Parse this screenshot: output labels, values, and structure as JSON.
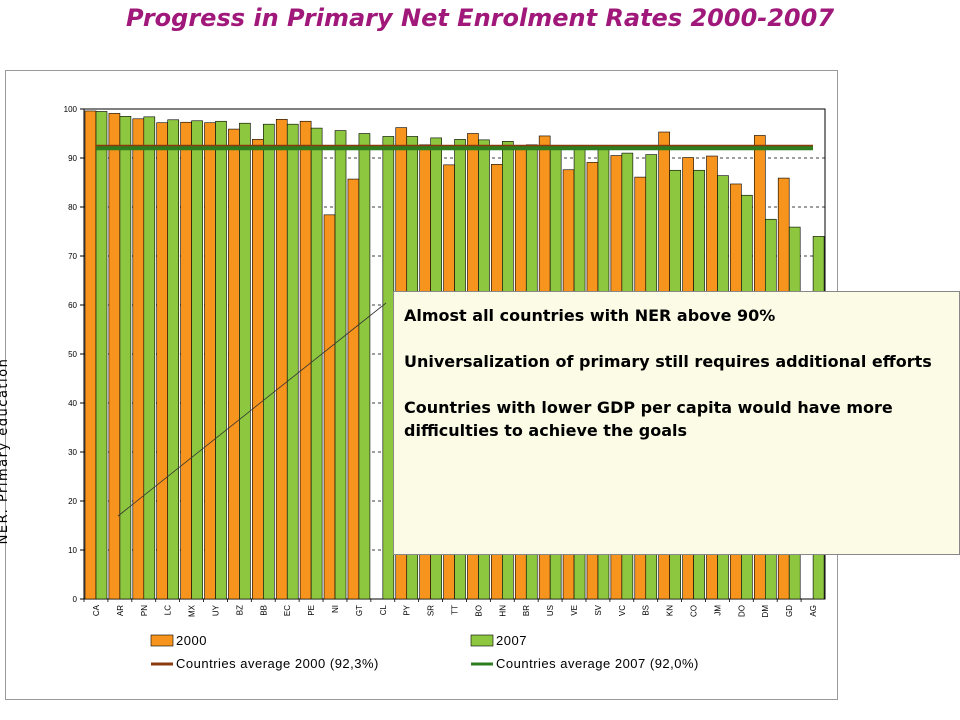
{
  "title": "Progress in Primary Net Enrolment Rates 2000-2007",
  "annotation": {
    "lines": [
      "Almost all countries with NER above 90%",
      "Universalization of primary still requires additional efforts",
      "Countries with lower GDP per capita would have more difficulties to achieve the goals"
    ]
  },
  "chart_data": {
    "type": "bar",
    "ylabel": "NER. Primary education",
    "xlabel": "",
    "ylim": [
      0,
      100
    ],
    "yticks": [
      0,
      10,
      20,
      30,
      40,
      50,
      60,
      70,
      80,
      90,
      100
    ],
    "categories": [
      "CA",
      "AR",
      "PN",
      "LC",
      "MX",
      "UY",
      "BZ",
      "BB",
      "EC",
      "PE",
      "NI",
      "GT",
      "CL",
      "PY",
      "SR",
      "TT",
      "BO",
      "HN",
      "BR",
      "US",
      "VE",
      "SV",
      "VC",
      "BS",
      "KN",
      "CO",
      "JM",
      "DO",
      "DM",
      "GD",
      "AG"
    ],
    "series": [
      {
        "name": "2000",
        "color": "#f7941d",
        "values": [
          99.6,
          99.1,
          98.0,
          97.2,
          97.3,
          97.2,
          95.9,
          93.8,
          97.9,
          97.5,
          78.4,
          85.7,
          null,
          96.2,
          92.7,
          88.6,
          95.0,
          88.7,
          92.5,
          94.5,
          87.6,
          89.1,
          90.5,
          86.1,
          95.3,
          90.1,
          90.4,
          84.7,
          94.6,
          85.9,
          null
        ]
      },
      {
        "name": "2007",
        "color": "#8dc63f",
        "values": [
          99.5,
          98.5,
          98.4,
          97.8,
          97.6,
          97.5,
          97.1,
          96.9,
          96.9,
          96.1,
          95.6,
          95.0,
          94.4,
          94.4,
          94.1,
          93.8,
          93.7,
          93.4,
          92.7,
          92.3,
          92.2,
          92.0,
          91.0,
          90.7,
          87.5,
          87.5,
          86.4,
          82.4,
          77.5,
          75.9,
          74.0
        ]
      }
    ],
    "averages": [
      {
        "name": "Countries average 2000 (92,3%)",
        "value": 92.3,
        "color": "#8b3a0e"
      },
      {
        "name": "Countries average 2007 (92,0%)",
        "value": 92.0,
        "color": "#2e7d1e"
      }
    ],
    "grid": "dashed-horizontal",
    "legend_position": "bottom"
  }
}
